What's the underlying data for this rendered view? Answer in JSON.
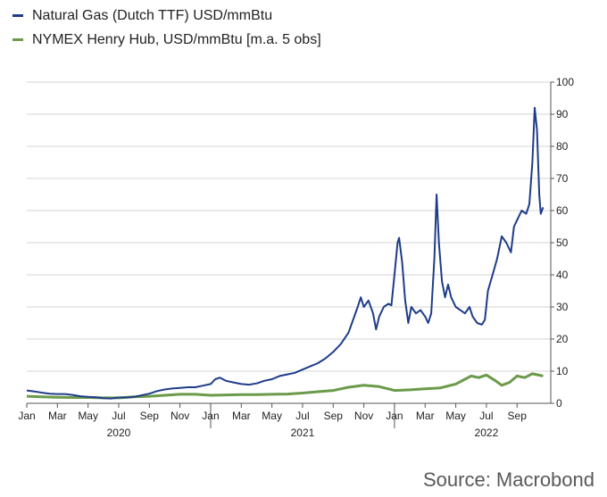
{
  "legend": {
    "items": [
      {
        "label": "Natural Gas (Dutch TTF) USD/mmBtu",
        "color": "#1f3c88"
      },
      {
        "label": "NYMEX Henry Hub, USD/mmBtu [m.a. 5 obs]",
        "color": "#6b9a4a"
      }
    ]
  },
  "source": "Source: Macrobond",
  "chart_data": {
    "type": "line",
    "title": "",
    "xlabel": "",
    "ylabel": "",
    "ylim": [
      0,
      100
    ],
    "y_axis_position": "right",
    "grid": true,
    "legend_position": "top-left",
    "x_ticks": [
      "Jan",
      "Mar",
      "May",
      "Jul",
      "Sep",
      "Nov",
      "Jan",
      "Mar",
      "May",
      "Jul",
      "Sep",
      "Nov",
      "Jan",
      "Mar",
      "May",
      "Jul",
      "Sep"
    ],
    "x_tick_months": [
      0,
      2,
      4,
      6,
      8,
      10,
      12,
      14,
      16,
      18,
      20,
      22,
      24,
      26,
      28,
      30,
      32
    ],
    "year_labels": [
      {
        "label": "2020",
        "month": 6
      },
      {
        "label": "2021",
        "month": 18
      },
      {
        "label": "2022",
        "month": 30
      }
    ],
    "y_ticks": [
      0,
      10,
      20,
      30,
      40,
      50,
      60,
      70,
      80,
      90,
      100
    ],
    "series": [
      {
        "name": "Natural Gas (Dutch TTF) USD/mmBtu",
        "color": "#1f3c88",
        "points": [
          [
            0,
            4.0
          ],
          [
            0.5,
            3.7
          ],
          [
            1,
            3.3
          ],
          [
            1.5,
            3.0
          ],
          [
            2,
            2.9
          ],
          [
            2.5,
            2.9
          ],
          [
            3,
            2.6
          ],
          [
            3.5,
            2.2
          ],
          [
            4,
            2.0
          ],
          [
            4.5,
            1.9
          ],
          [
            5,
            1.6
          ],
          [
            5.5,
            1.5
          ],
          [
            6,
            1.8
          ],
          [
            6.5,
            1.8
          ],
          [
            7,
            2.0
          ],
          [
            7.5,
            2.5
          ],
          [
            8,
            3.0
          ],
          [
            8.5,
            3.8
          ],
          [
            9,
            4.3
          ],
          [
            9.5,
            4.6
          ],
          [
            10,
            4.8
          ],
          [
            10.5,
            5.0
          ],
          [
            11,
            5.0
          ],
          [
            11.5,
            5.5
          ],
          [
            12,
            6.0
          ],
          [
            12.3,
            7.5
          ],
          [
            12.6,
            8.0
          ],
          [
            13,
            7.0
          ],
          [
            13.5,
            6.5
          ],
          [
            14,
            6.0
          ],
          [
            14.5,
            5.8
          ],
          [
            15,
            6.2
          ],
          [
            15.5,
            7.0
          ],
          [
            16,
            7.5
          ],
          [
            16.5,
            8.5
          ],
          [
            17,
            9.0
          ],
          [
            17.5,
            9.5
          ],
          [
            18,
            10.5
          ],
          [
            18.5,
            11.5
          ],
          [
            19,
            12.5
          ],
          [
            19.5,
            14.0
          ],
          [
            20,
            16.0
          ],
          [
            20.5,
            18.5
          ],
          [
            21,
            22.0
          ],
          [
            21.3,
            26.0
          ],
          [
            21.6,
            30.0
          ],
          [
            21.8,
            33.0
          ],
          [
            22.0,
            30.0
          ],
          [
            22.3,
            32.0
          ],
          [
            22.6,
            28.0
          ],
          [
            22.8,
            23.0
          ],
          [
            23.0,
            27.0
          ],
          [
            23.3,
            30.0
          ],
          [
            23.6,
            31.0
          ],
          [
            23.8,
            30.5
          ],
          [
            24.0,
            40.0
          ],
          [
            24.2,
            50.0
          ],
          [
            24.3,
            51.5
          ],
          [
            24.5,
            44.0
          ],
          [
            24.7,
            32.0
          ],
          [
            24.9,
            25.0
          ],
          [
            25.1,
            30.0
          ],
          [
            25.4,
            28.0
          ],
          [
            25.7,
            29.0
          ],
          [
            26.0,
            27.0
          ],
          [
            26.2,
            25.0
          ],
          [
            26.4,
            28.0
          ],
          [
            26.6,
            45.0
          ],
          [
            26.75,
            65.0
          ],
          [
            26.9,
            50.0
          ],
          [
            27.1,
            38.0
          ],
          [
            27.3,
            33.0
          ],
          [
            27.5,
            37.0
          ],
          [
            27.7,
            33.0
          ],
          [
            28.0,
            30.0
          ],
          [
            28.3,
            29.0
          ],
          [
            28.6,
            28.0
          ],
          [
            28.9,
            30.0
          ],
          [
            29.1,
            27.0
          ],
          [
            29.4,
            25.0
          ],
          [
            29.7,
            24.5
          ],
          [
            29.9,
            26.0
          ],
          [
            30.1,
            35.0
          ],
          [
            30.4,
            40.0
          ],
          [
            30.7,
            45.0
          ],
          [
            31.0,
            52.0
          ],
          [
            31.3,
            50.0
          ],
          [
            31.6,
            47.0
          ],
          [
            31.8,
            55.0
          ],
          [
            32.0,
            57.0
          ],
          [
            32.3,
            60.0
          ],
          [
            32.6,
            59.0
          ],
          [
            32.8,
            62.0
          ],
          [
            33.0,
            75.0
          ],
          [
            33.15,
            92.0
          ],
          [
            33.3,
            85.0
          ],
          [
            33.45,
            65.0
          ],
          [
            33.55,
            59.0
          ],
          [
            33.7,
            61.0
          ]
        ]
      },
      {
        "name": "NYMEX Henry Hub, USD/mmBtu [m.a. 5 obs]",
        "color": "#6b9a4a",
        "points": [
          [
            0,
            2.2
          ],
          [
            1,
            2.0
          ],
          [
            2,
            1.9
          ],
          [
            3,
            1.8
          ],
          [
            4,
            1.8
          ],
          [
            5,
            1.7
          ],
          [
            6,
            1.7
          ],
          [
            7,
            2.0
          ],
          [
            8,
            2.2
          ],
          [
            9,
            2.5
          ],
          [
            10,
            2.8
          ],
          [
            11,
            2.8
          ],
          [
            12,
            2.5
          ],
          [
            13,
            2.6
          ],
          [
            14,
            2.7
          ],
          [
            15,
            2.7
          ],
          [
            16,
            2.8
          ],
          [
            17,
            2.9
          ],
          [
            18,
            3.2
          ],
          [
            19,
            3.6
          ],
          [
            20,
            4.0
          ],
          [
            21,
            5.0
          ],
          [
            22,
            5.6
          ],
          [
            23,
            5.2
          ],
          [
            24,
            4.0
          ],
          [
            25,
            4.2
          ],
          [
            26,
            4.5
          ],
          [
            27,
            4.8
          ],
          [
            28,
            6.0
          ],
          [
            28.6,
            7.5
          ],
          [
            29,
            8.5
          ],
          [
            29.5,
            8.0
          ],
          [
            30,
            8.8
          ],
          [
            30.6,
            7.0
          ],
          [
            31,
            5.6
          ],
          [
            31.5,
            6.5
          ],
          [
            32,
            8.5
          ],
          [
            32.5,
            8.0
          ],
          [
            33,
            9.2
          ],
          [
            33.7,
            8.5
          ]
        ]
      }
    ]
  }
}
